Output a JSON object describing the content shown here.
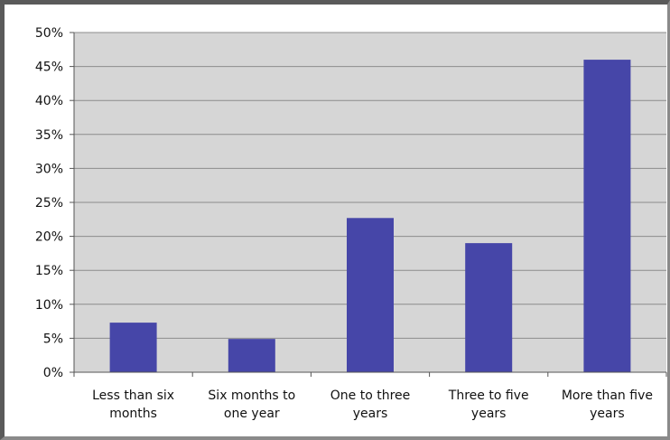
{
  "chart_data": {
    "type": "bar",
    "categories": [
      [
        "Less than six",
        "months"
      ],
      [
        "Six months to",
        "one year"
      ],
      [
        "One to three",
        "years"
      ],
      [
        "Three to five",
        "years"
      ],
      [
        "More than five",
        "years"
      ]
    ],
    "values": [
      7.3,
      4.9,
      22.7,
      19.0,
      46.0
    ],
    "ylim": [
      0,
      50
    ],
    "yticks": [
      "0%",
      "5%",
      "10%",
      "15%",
      "20%",
      "25%",
      "30%",
      "35%",
      "40%",
      "45%",
      "50%"
    ],
    "grid": true,
    "colors": {
      "bar": "#4646a8",
      "plot_background": "#d6d6d6",
      "gridline": "#8c8c8c"
    }
  }
}
